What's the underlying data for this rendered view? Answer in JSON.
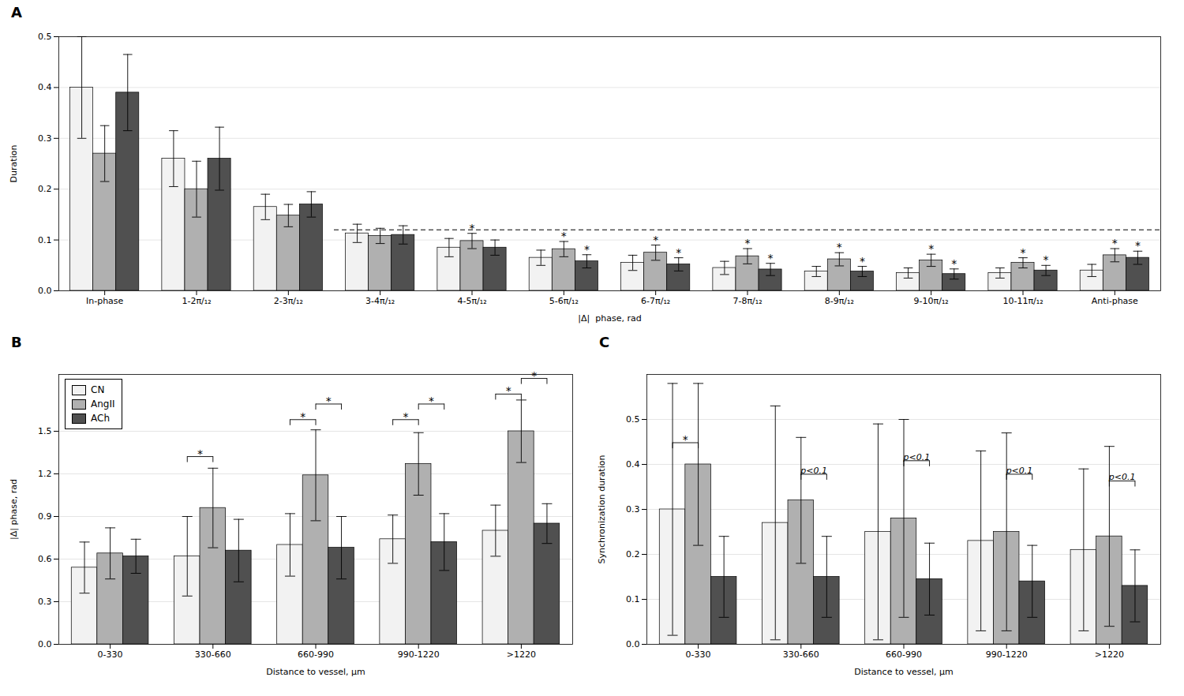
{
  "chart_data": [
    {
      "type": "bar",
      "title": "A",
      "categories": [
        "In-phase",
        "1-2π/₁₂",
        "2-3π/₁₂",
        "3-4π/₁₂",
        "4-5π/₁₂",
        "5-6π/₁₂",
        "6-7π/₁₂",
        "7-8π/₁₂",
        "8-9π/₁₂",
        "9-10π/₁₂",
        "10-11π/₁₂",
        "Anti-phase"
      ],
      "series": [
        {
          "name": "CN",
          "color": "#f2f2f2",
          "values": [
            0.4,
            0.26,
            0.165,
            0.113,
            0.085,
            0.065,
            0.055,
            0.045,
            0.038,
            0.035,
            0.035,
            0.04
          ],
          "errors": [
            0.1,
            0.055,
            0.025,
            0.018,
            0.018,
            0.015,
            0.015,
            0.013,
            0.01,
            0.01,
            0.01,
            0.012
          ]
        },
        {
          "name": "AngII",
          "color": "#b0b0b0",
          "values": [
            0.27,
            0.2,
            0.148,
            0.108,
            0.098,
            0.082,
            0.075,
            0.068,
            0.062,
            0.06,
            0.055,
            0.07
          ],
          "errors": [
            0.055,
            0.055,
            0.022,
            0.015,
            0.015,
            0.015,
            0.015,
            0.015,
            0.013,
            0.012,
            0.01,
            0.013
          ]
        },
        {
          "name": "ACh",
          "color": "#505050",
          "values": [
            0.39,
            0.26,
            0.17,
            0.11,
            0.085,
            0.058,
            0.052,
            0.042,
            0.038,
            0.033,
            0.04,
            0.065
          ],
          "errors": [
            0.075,
            0.062,
            0.025,
            0.018,
            0.015,
            0.013,
            0.013,
            0.012,
            0.01,
            0.01,
            0.01,
            0.013
          ]
        }
      ],
      "ylabel": "Duration",
      "xlabel": "|Δ|  phase, rad",
      "ylim": [
        0.0,
        0.5
      ],
      "yticks": [
        {
          "value": 0.0,
          "label": "0.0"
        },
        0.1,
        0.2,
        0.3,
        0.4,
        0.5
      ],
      "grid": true,
      "reference_line": {
        "value": 0.12,
        "line_style": "dashed",
        "start": "3-4π/₁₂"
      },
      "annotations": [
        {
          "text": "*",
          "category": "4-5π/₁₂",
          "series": "AngII"
        },
        {
          "text": "*",
          "category": "5-6π/₁₂",
          "series": "AngII"
        },
        {
          "text": "*",
          "category": "6-7π/₁₂",
          "series": "AngII"
        },
        {
          "text": "*",
          "category": "7-8π/₁₂",
          "series": "AngII"
        },
        {
          "text": "*",
          "category": "8-9π/₁₂",
          "series": "AngII"
        },
        {
          "text": "*",
          "category": "9-10π/₁₂",
          "series": "AngII"
        },
        {
          "text": "*",
          "category": "10-11π/₁₂",
          "series": "AngII"
        },
        {
          "text": "*",
          "category": "Anti-phase",
          "series": "AngII"
        },
        {
          "text": "*",
          "category": "5-6π/₁₂",
          "series": "ACh"
        },
        {
          "text": "*",
          "category": "6-7π/₁₂",
          "series": "ACh"
        },
        {
          "text": "*",
          "category": "7-8π/₁₂",
          "series": "ACh"
        },
        {
          "text": "*",
          "category": "8-9π/₁₂",
          "series": "ACh"
        },
        {
          "text": "*",
          "category": "9-10π/₁₂",
          "series": "ACh"
        },
        {
          "text": "*",
          "category": "10-11π/₁₂",
          "series": "ACh"
        },
        {
          "text": "*",
          "category": "Anti-phase",
          "series": "ACh"
        }
      ]
    },
    {
      "type": "bar",
      "title": "B",
      "categories": [
        "0-330",
        "330-660",
        "660-990",
        "990-1220",
        ">1220"
      ],
      "series": [
        {
          "name": "CN",
          "color": "#f2f2f2",
          "values": [
            0.54,
            0.62,
            0.7,
            0.74,
            0.8
          ],
          "errors": [
            0.18,
            0.28,
            0.22,
            0.17,
            0.18
          ]
        },
        {
          "name": "AngII",
          "color": "#b0b0b0",
          "values": [
            0.64,
            0.96,
            1.19,
            1.27,
            1.5
          ],
          "errors": [
            0.18,
            0.28,
            0.32,
            0.22,
            0.22
          ]
        },
        {
          "name": "ACh",
          "color": "#505050",
          "values": [
            0.62,
            0.66,
            0.68,
            0.72,
            0.85
          ],
          "errors": [
            0.12,
            0.22,
            0.22,
            0.2,
            0.14
          ]
        }
      ],
      "ylabel": "|Δ| phase, rad",
      "xlabel": "Distance to vessel, μm",
      "ylim": [
        0.0,
        1.9
      ],
      "yticks": [
        {
          "value": 0.0,
          "label": "0.0"
        },
        0.3,
        0.6,
        0.9,
        1.2,
        1.5
      ],
      "grid": true,
      "legend": "upper left",
      "annotations": [
        {
          "text": "*",
          "category": "330-660",
          "from": "CN",
          "to": "AngII",
          "y": 1.28
        },
        {
          "text": "*",
          "category": "660-990",
          "from": "CN",
          "to": "AngII",
          "y": 1.54
        },
        {
          "text": "*",
          "category": "660-990",
          "from": "AngII",
          "to": "ACh",
          "y": 1.65
        },
        {
          "text": "*",
          "category": "990-1220",
          "from": "CN",
          "to": "AngII",
          "y": 1.54
        },
        {
          "text": "*",
          "category": "990-1220",
          "from": "AngII",
          "to": "ACh",
          "y": 1.65
        },
        {
          "text": "*",
          "category": ">1220",
          "from": "CN",
          "to": "AngII",
          "y": 1.72
        },
        {
          "text": "*",
          "category": ">1220",
          "from": "AngII",
          "to": "ACh",
          "y": 1.83
        }
      ]
    },
    {
      "type": "bar",
      "title": "C",
      "categories": [
        "0-330",
        "330-660",
        "660-990",
        "990-1220",
        ">1220"
      ],
      "series": [
        {
          "name": "CN",
          "color": "#f2f2f2",
          "values": [
            0.3,
            0.27,
            0.25,
            0.23,
            0.21
          ],
          "errors": [
            0.28,
            0.26,
            0.24,
            0.2,
            0.18
          ]
        },
        {
          "name": "AngII",
          "color": "#b0b0b0",
          "values": [
            0.4,
            0.32,
            0.28,
            0.25,
            0.24
          ],
          "errors": [
            0.18,
            0.14,
            0.22,
            0.22,
            0.2
          ]
        },
        {
          "name": "ACh",
          "color": "#505050",
          "values": [
            0.15,
            0.15,
            0.145,
            0.14,
            0.13
          ],
          "errors": [
            0.09,
            0.09,
            0.08,
            0.08,
            0.08
          ]
        }
      ],
      "ylabel": "Synchronization duration",
      "xlabel": "Distance to vessel, μm",
      "ylim": [
        0.0,
        0.6
      ],
      "yticks": [
        {
          "value": 0.0,
          "label": "0.0"
        },
        0.1,
        0.2,
        0.3,
        0.4,
        0.5
      ],
      "grid": true,
      "annotations": [
        {
          "text": "*",
          "category": "0-330",
          "from": "CN",
          "to": "AngII",
          "y": 0.435
        },
        {
          "text": "p<0.1",
          "category": "330-660",
          "from": "AngII",
          "to": "ACh",
          "y": 0.365
        },
        {
          "text": "p<0.1",
          "category": "660-990",
          "from": "AngII",
          "to": "ACh",
          "y": 0.395
        },
        {
          "text": "p<0.1",
          "category": "990-1220",
          "from": "AngII",
          "to": "ACh",
          "y": 0.365
        },
        {
          "text": "p<0.1",
          "category": ">1220",
          "from": "AngII",
          "to": "ACh",
          "y": 0.35
        }
      ]
    }
  ]
}
